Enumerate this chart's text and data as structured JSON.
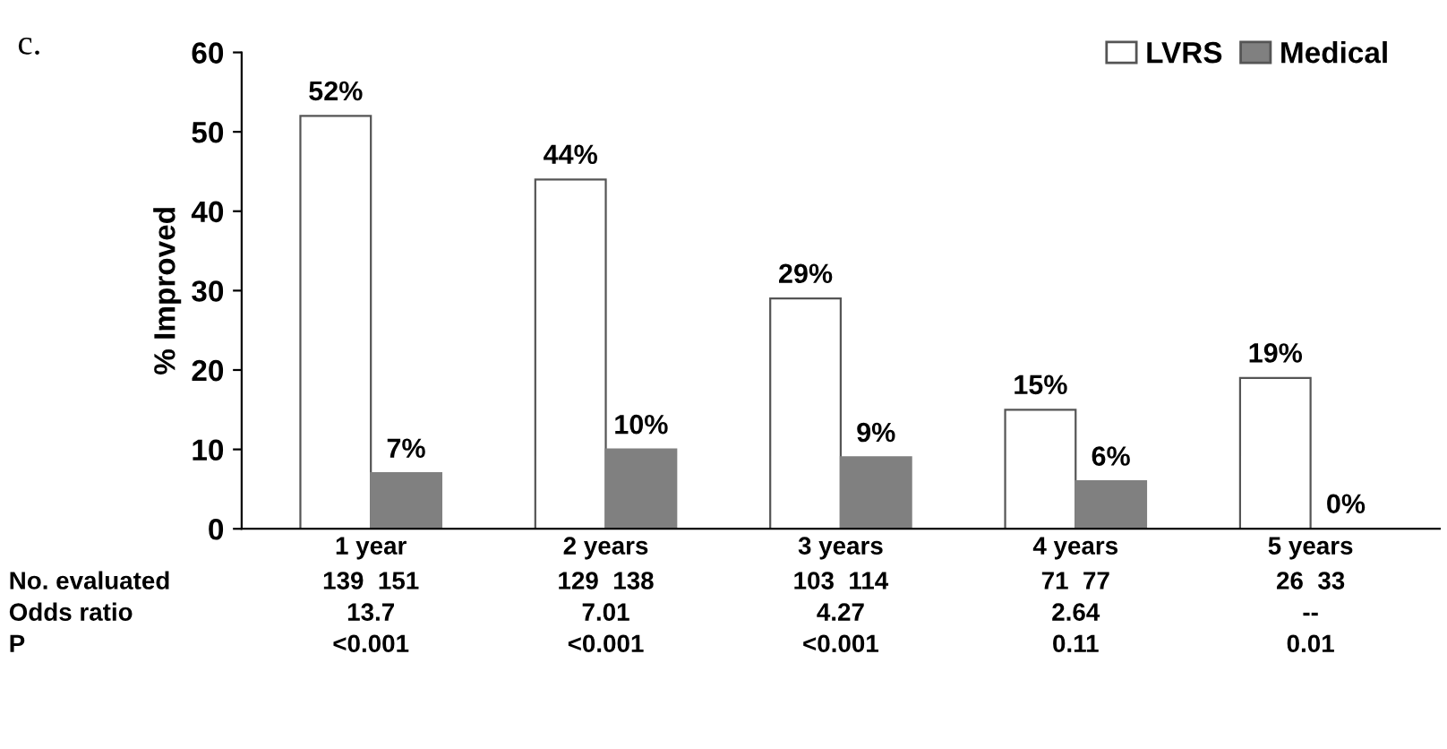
{
  "chart_data": {
    "type": "bar",
    "ylabel": "% Improved",
    "categories": [
      "1 year",
      "2 years",
      "3 years",
      "4 years",
      "5 years"
    ],
    "series": [
      {
        "name": "LVRS",
        "color": "#ffffff",
        "values": [
          52,
          44,
          29,
          15,
          19
        ],
        "value_labels": [
          "52%",
          "44%",
          "29%",
          "15%",
          "19%"
        ]
      },
      {
        "name": "Medical",
        "color": "#808080",
        "values": [
          7,
          10,
          9,
          6,
          0
        ],
        "value_labels": [
          "7%",
          "10%",
          "9%",
          "6%",
          "0%"
        ]
      }
    ],
    "ylim": [
      0,
      60
    ],
    "yticks": [
      0,
      10,
      20,
      30,
      40,
      50,
      60
    ],
    "grid": false,
    "legend": "top right",
    "annotations": [
      "c.",
      "No. evaluated",
      "139  151",
      "129  138",
      "103  114",
      "71  77",
      "26  33",
      "Odds ratio",
      "13.7",
      "7.01",
      "4.27",
      "2.64",
      "--",
      "P",
      "<0.001",
      "<0.001",
      "<0.001",
      "0.11",
      "0.01"
    ]
  }
}
